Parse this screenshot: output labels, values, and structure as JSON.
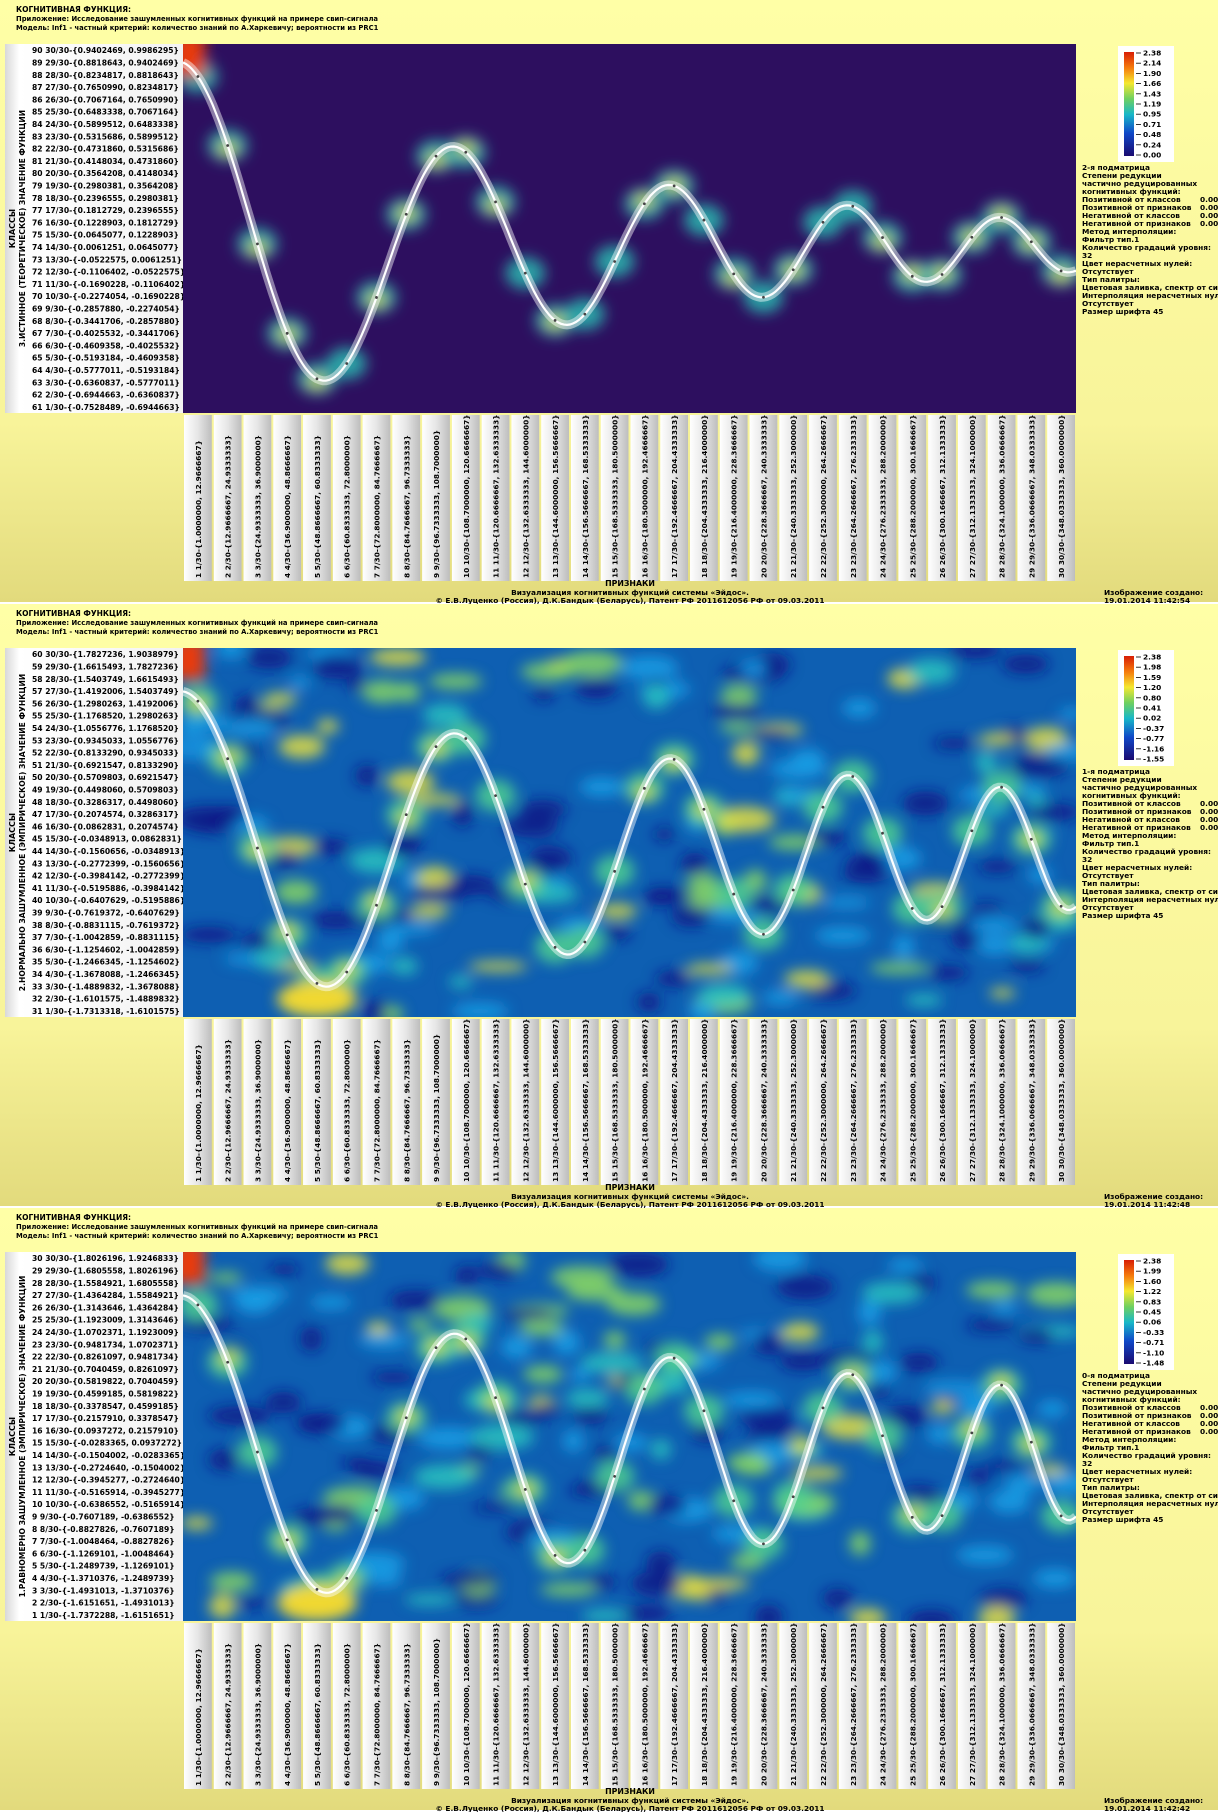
{
  "header": {
    "title": "КОГНИТИВНАЯ ФУНКЦИЯ:",
    "application": "Приложение: Исследование зашумленных когнитивных функций на примере свип-сигнала",
    "model": "Модель: Inf1 - частный критерий: количество знаний по А.Харкевичу; вероятности из PRC1"
  },
  "y_axis_title": "КЛАССЫ",
  "x_axis_title": "ПРИЗНАКИ",
  "x_labels": [
    "1 1/30-{1.0000000, 12.9666667}",
    "2 2/30-{12.9666667, 24.9333333}",
    "3 3/30-{24.9333333, 36.9000000}",
    "4 4/30-{36.9000000, 48.8666667}",
    "5 5/30-{48.8666667, 60.8333333}",
    "6 6/30-{60.8333333, 72.8000000}",
    "7 7/30-{72.8000000, 84.7666667}",
    "8 8/30-{84.7666667, 96.7333333}",
    "9 9/30-{96.7333333, 108.7000000}",
    "10 10/30-{108.7000000, 120.6666667}",
    "11 11/30-{120.6666667, 132.6333333}",
    "12 12/30-{132.6333333, 144.6000000}",
    "13 13/30-{144.6000000, 156.5666667}",
    "14 14/30-{156.5666667, 168.5333333}",
    "15 15/30-{168.5333333, 180.5000000}",
    "16 16/30-{180.5000000, 192.4666667}",
    "17 17/30-{192.4666667, 204.4333333}",
    "18 18/30-{204.4333333, 216.4000000}",
    "19 19/30-{216.4000000, 228.3666667}",
    "20 20/30-{228.3666667, 240.3333333}",
    "21 21/30-{240.3333333, 252.3000000}",
    "22 22/30-{252.3000000, 264.2666667}",
    "23 23/30-{264.2666667, 276.2333333}",
    "24 24/30-{276.2333333, 288.2000000}",
    "25 25/30-{288.2000000, 300.1666667}",
    "26 26/30-{300.1666667, 312.1333333}",
    "27 27/30-{312.1333333, 324.1000000}",
    "28 28/30-{324.1000000, 336.0666667}",
    "29 29/30-{336.0666667, 348.0333333}",
    "30 30/30-{348.0333333, 360.0000000}"
  ],
  "footer": {
    "line1": "Визуализация когнитивных функций системы «Эйдос».",
    "line2": "© Е.В.Луценко (Россия), Д.К.Бандык (Беларусь), Патент РФ  2011612056 РФ от 09.03.2011",
    "created_label": "Изображение создано:"
  },
  "side_common": [
    "Степени редукции",
    "частично редуцированных",
    "когнитивных функций:",
    {
      "label": "Позитивной от классов",
      "value": "0.00"
    },
    {
      "label": "Позитивной от признаков",
      "value": "0.00"
    },
    {
      "label": "Негативной от классов",
      "value": "0.00"
    },
    {
      "label": "Негативной от признаков",
      "value": "0.00"
    },
    "Метод интерполяции:",
    "Фильтр тип.1",
    "Количество градаций уровня:",
    "32",
    "Цвет нерасчетных нулей:",
    "Отсутствует",
    "Тип палитры:",
    "Цветовая заливка, спектр от син",
    "Интерполяция нерасчетных нуле",
    "Отсутствует",
    "Размер шрифта 45"
  ],
  "panels": [
    {
      "y_axis_subtitle": "3.ИСТИННОЕ (ТЕОРЕТИЧЕСКОЕ) ЗНАЧЕНИЕ ФУНКЦИИ",
      "submatrix": "2-я подматрица",
      "created_time": "19.01.2014  11:42:54",
      "legend_ticks": [
        "2.38",
        "2.14",
        "1.90",
        "1.66",
        "1.43",
        "1.19",
        "0.95",
        "0.71",
        "0.48",
        "0.24",
        "0.00"
      ],
      "y_labels": [
        "90 30/30-{0.9402469, 0.9986295}",
        "89 29/30-{0.8818643, 0.9402469}",
        "88 28/30-{0.8234817, 0.8818643}",
        "87 27/30-{0.7650990, 0.8234817}",
        "86 26/30-{0.7067164, 0.7650990}",
        "85 25/30-{0.6483338, 0.7067164}",
        "84 24/30-{0.5899512, 0.6483338}",
        "83 23/30-{0.5315686, 0.5899512}",
        "82 22/30-{0.4731860, 0.5315686}",
        "81 21/30-{0.4148034, 0.4731860}",
        "80 20/30-{0.3564208, 0.4148034}",
        "79 19/30-{0.2980381, 0.3564208}",
        "78 18/30-{0.2396555, 0.2980381}",
        "77 17/30-{0.1812729, 0.2396555}",
        "76 16/30-{0.1228903, 0.1812729}",
        "75 15/30-{0.0645077, 0.1228903}",
        "74 14/30-{0.0061251, 0.0645077}",
        "73 13/30-{-0.0522575, 0.0061251}",
        "72 12/30-{-0.1106402, -0.0522575}",
        "71 11/30-{-0.1690228, -0.1106402}",
        "70 10/30-{-0.2274054, -0.1690228}",
        "69 9/30-{-0.2857880, -0.2274054}",
        "68 8/30-{-0.3441706, -0.2857880}",
        "67 7/30-{-0.4025532, -0.3441706}",
        "66 6/30-{-0.4609358, -0.4025532}",
        "65 5/30-{-0.5193184, -0.4609358}",
        "64 4/30-{-0.5777011, -0.5193184}",
        "63 3/30-{-0.6360837, -0.5777011}",
        "62 2/30-{-0.6944663, -0.6360837}",
        "61 1/30-{-0.7528489, -0.6944663}"
      ]
    },
    {
      "y_axis_subtitle": "2.НОРМАЛЬНО ЗАШУМЛЕННОЕ (ЭМПИРИЧЕСКОЕ) ЗНАЧЕНИЕ ФУНКЦИИ",
      "submatrix": "1-я подматрица",
      "created_time": "19.01.2014  11:42:48",
      "legend_ticks": [
        "2.38",
        "1.98",
        "1.59",
        "1.20",
        "0.80",
        "0.41",
        "0.02",
        "-0.37",
        "-0.77",
        "-1.16",
        "-1.55"
      ],
      "y_labels": [
        "60 30/30-{1.7827236, 1.9038979}",
        "59 29/30-{1.6615493, 1.7827236}",
        "58 28/30-{1.5403749, 1.6615493}",
        "57 27/30-{1.4192006, 1.5403749}",
        "56 26/30-{1.2980263, 1.4192006}",
        "55 25/30-{1.1768520, 1.2980263}",
        "54 24/30-{1.0556776, 1.1768520}",
        "53 23/30-{0.9345033, 1.0556776}",
        "52 22/30-{0.8133290, 0.9345033}",
        "51 21/30-{0.6921547, 0.8133290}",
        "50 20/30-{0.5709803, 0.6921547}",
        "49 19/30-{0.4498060, 0.5709803}",
        "48 18/30-{0.3286317, 0.4498060}",
        "47 17/30-{0.2074574, 0.3286317}",
        "46 16/30-{0.0862831, 0.2074574}",
        "45 15/30-{-0.0348913, 0.0862831}",
        "44 14/30-{-0.1560656, -0.0348913}",
        "43 13/30-{-0.2772399, -0.1560656}",
        "42 12/30-{-0.3984142, -0.2772399}",
        "41 11/30-{-0.5195886, -0.3984142}",
        "40 10/30-{-0.6407629, -0.5195886}",
        "39 9/30-{-0.7619372, -0.6407629}",
        "38 8/30-{-0.8831115, -0.7619372}",
        "37 7/30-{-1.0042859, -0.8831115}",
        "36 6/30-{-1.1254602, -1.0042859}",
        "35 5/30-{-1.2466345, -1.1254602}",
        "34 4/30-{-1.3678088, -1.2466345}",
        "33 3/30-{-1.4889832, -1.3678088}",
        "32 2/30-{-1.6101575, -1.4889832}",
        "31 1/30-{-1.7313318, -1.6101575}"
      ]
    },
    {
      "y_axis_subtitle": "1.РАВНОМЕРНО ЗАШУМЛЕННОЕ (ЭМПИРИЧЕСКОЕ) ЗНАЧЕНИЕ ФУНКЦИИ",
      "submatrix": "0-я подматрица",
      "created_time": "19.01.2014  11:42:42",
      "legend_ticks": [
        "2.38",
        "1.99",
        "1.60",
        "1.22",
        "0.83",
        "0.45",
        "0.06",
        "-0.33",
        "-0.71",
        "-1.10",
        "-1.48"
      ],
      "y_labels": [
        "30 30/30-{1.8026196, 1.9246833}",
        "29 29/30-{1.6805558, 1.8026196}",
        "28 28/30-{1.5584921, 1.6805558}",
        "27 27/30-{1.4364284, 1.5584921}",
        "26 26/30-{1.3143646, 1.4364284}",
        "25 25/30-{1.1923009, 1.3143646}",
        "24 24/30-{1.0702371, 1.1923009}",
        "23 23/30-{0.9481734, 1.0702371}",
        "22 22/30-{0.8261097, 0.9481734}",
        "21 21/30-{0.7040459, 0.8261097}",
        "20 20/30-{0.5819822, 0.7040459}",
        "19 19/30-{0.4599185, 0.5819822}",
        "18 18/30-{0.3378547, 0.4599185}",
        "17 17/30-{0.2157910, 0.3378547}",
        "16 16/30-{0.0937272, 0.2157910}",
        "15 15/30-{-0.0283365, 0.0937272}",
        "14 14/30-{-0.1504002, -0.0283365}",
        "13 13/30-{-0.2724640, -0.1504002}",
        "12 12/30-{-0.3945277, -0.2724640}",
        "11 11/30-{-0.5165914, -0.3945277}",
        "10 10/30-{-0.6386552, -0.5165914}",
        "9 9/30-{-0.7607189, -0.6386552}",
        "8 8/30-{-0.8827826, -0.7607189}",
        "7 7/30-{-1.0048464, -0.8827826}",
        "6 6/30-{-1.1269101, -1.0048464}",
        "5 5/30-{-1.2489739, -1.1269101}",
        "4 4/30-{-1.3710376, -1.2489739}",
        "3 3/30-{-1.4931013, -1.3710376}",
        "2 2/30-{-1.6151651, -1.4931013}",
        "1 1/30-{-1.7372288, -1.6151651}"
      ]
    }
  ]
}
